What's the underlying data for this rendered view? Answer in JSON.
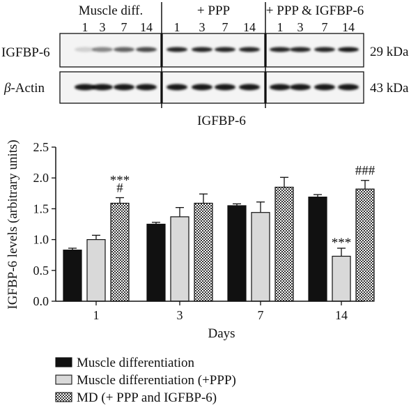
{
  "blot": {
    "groups": [
      {
        "label": "Muscle diff.",
        "lanes": [
          "1",
          "3",
          "7",
          "14"
        ],
        "igfbp6": [
          0.15,
          0.45,
          0.6,
          0.7
        ]
      },
      {
        "label": "+ PPP",
        "lanes": [
          "1",
          "3",
          "7",
          "14"
        ],
        "igfbp6": [
          0.85,
          0.85,
          0.85,
          0.85
        ]
      },
      {
        "label": "+ PPP & IGFBP-6",
        "lanes": [
          "1",
          "3",
          "7",
          "14"
        ],
        "igfbp6": [
          0.85,
          0.85,
          0.85,
          0.9
        ]
      }
    ],
    "rows": [
      {
        "label": "IGFBP-6",
        "size": "29 kDa"
      },
      {
        "label_italic": "β",
        "label": "-Actin",
        "size": "43 kDa"
      }
    ]
  },
  "chart_data": {
    "type": "bar",
    "title": "IGFBP-6",
    "xlabel": "Days",
    "ylabel": "IGFBP-6 levels (arbitrary units)",
    "ylim": [
      0,
      2.5
    ],
    "yticks": [
      "0.0",
      "0.5",
      "1.0",
      "1.5",
      "2.0",
      "2.5"
    ],
    "categories": [
      "1",
      "3",
      "7",
      "14"
    ],
    "series": [
      {
        "name": "Muscle differentiation",
        "color": "#111111",
        "pattern": "solid",
        "values": [
          0.83,
          1.25,
          1.55,
          1.69
        ],
        "errors": [
          0.03,
          0.03,
          0.03,
          0.04
        ]
      },
      {
        "name": "Muscle differentiation (+PPP)",
        "color": "#d9d9d9",
        "pattern": "solid",
        "values": [
          1.0,
          1.37,
          1.44,
          0.73
        ],
        "errors": [
          0.07,
          0.15,
          0.17,
          0.13
        ]
      },
      {
        "name": "MD (+ PPP and IGFBP-6)",
        "color": "#555555",
        "pattern": "checker",
        "values": [
          1.59,
          1.59,
          1.85,
          1.82
        ],
        "errors": [
          0.09,
          0.15,
          0.16,
          0.14
        ]
      }
    ],
    "annotations": [
      {
        "category": 0,
        "series": 2,
        "lines": [
          "***",
          "#"
        ]
      },
      {
        "category": 3,
        "series": 1,
        "lines": [
          "***"
        ]
      },
      {
        "category": 3,
        "series": 2,
        "lines": [
          "###"
        ]
      }
    ],
    "grid": false,
    "legend_position": "bottom-left"
  }
}
